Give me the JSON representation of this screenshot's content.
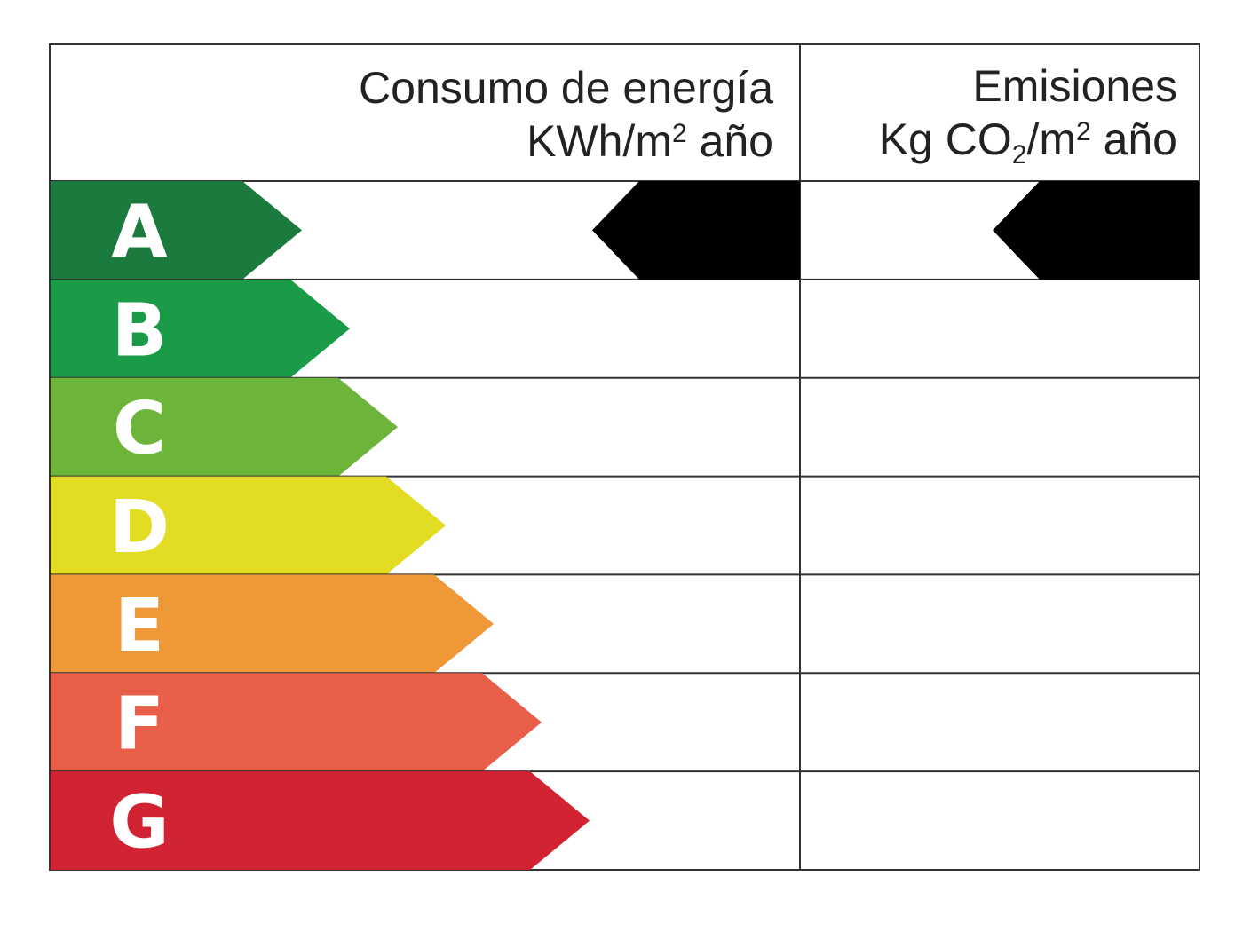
{
  "energy_column": {
    "title": "Consumo de energía",
    "unit_prefix": "KWh/m",
    "unit_exponent": "2",
    "unit_suffix": " año"
  },
  "emissions_column": {
    "title": "Emisiones",
    "unit_prefix": "Kg CO",
    "unit_subscript": "2",
    "unit_mid": "/m",
    "unit_exponent": "2",
    "unit_suffix": " año"
  },
  "classes": [
    {
      "letter": "A",
      "color": "#1b7a3e"
    },
    {
      "letter": "B",
      "color": "#1a9b48"
    },
    {
      "letter": "C",
      "color": "#6db43a"
    },
    {
      "letter": "D",
      "color": "#e2dc22"
    },
    {
      "letter": "E",
      "color": "#ef9838"
    },
    {
      "letter": "F",
      "color": "#e95e48"
    },
    {
      "letter": "G",
      "color": "#d22333"
    }
  ],
  "energy_indicator": {
    "rating": "A",
    "color": "#000000"
  },
  "emissions_indicator": {
    "rating": "A",
    "color": "#000000"
  }
}
